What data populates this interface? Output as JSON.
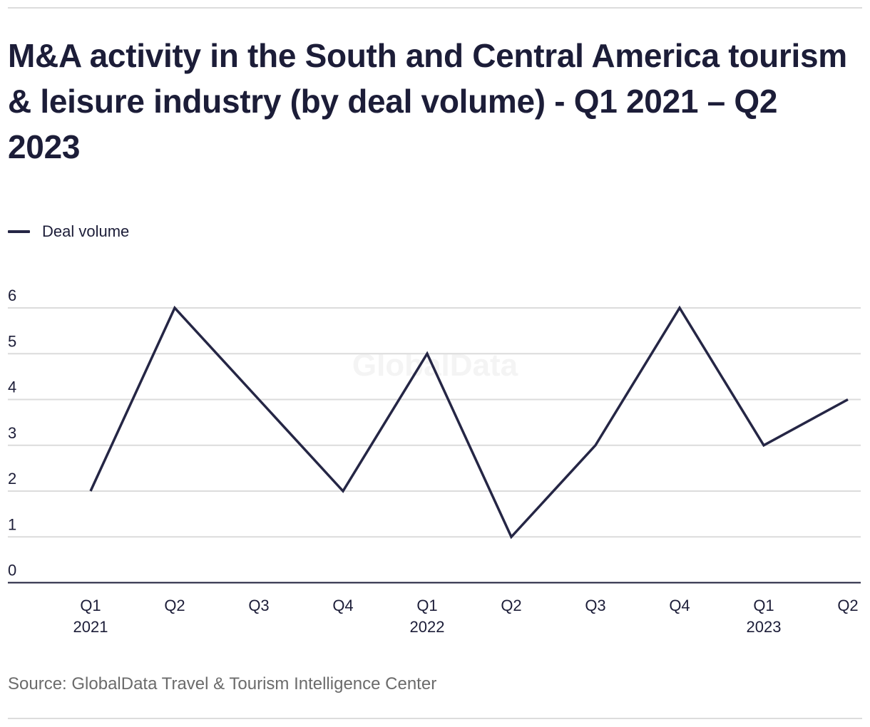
{
  "chart_data": {
    "type": "line",
    "title": "M&A activity in the South and Central America tourism & leisure industry (by deal volume) - Q1 2021 – Q2 2023",
    "xlabel": "",
    "ylabel": "",
    "categories": [
      "Q1 2021",
      "Q2 2021",
      "Q3 2021",
      "Q4 2021",
      "Q1 2022",
      "Q2 2022",
      "Q3 2022",
      "Q4 2022",
      "Q1 2023",
      "Q2 2023"
    ],
    "x_tick_labels": [
      {
        "quarter": "Q1",
        "year": "2021"
      },
      {
        "quarter": "Q2",
        "year": ""
      },
      {
        "quarter": "Q3",
        "year": ""
      },
      {
        "quarter": "Q4",
        "year": ""
      },
      {
        "quarter": "Q1",
        "year": "2022"
      },
      {
        "quarter": "Q2",
        "year": ""
      },
      {
        "quarter": "Q3",
        "year": ""
      },
      {
        "quarter": "Q4",
        "year": ""
      },
      {
        "quarter": "Q1",
        "year": "2023"
      },
      {
        "quarter": "Q2",
        "year": ""
      }
    ],
    "series": [
      {
        "name": "Deal volume",
        "color": "#252645",
        "values": [
          2,
          6,
          4,
          2,
          5,
          1,
          3,
          6,
          3,
          4
        ]
      }
    ],
    "y_ticks": [
      0,
      1,
      2,
      3,
      4,
      5,
      6
    ],
    "ylim": [
      0,
      6
    ],
    "grid": true,
    "legend_position": "top-left",
    "watermark": "GlobalData"
  },
  "header": {
    "title": "M&A activity in the South and Central America tourism & leisure industry (by deal volume) - Q1 2021 – Q2 2023"
  },
  "legend": {
    "items": [
      {
        "label": "Deal volume",
        "color": "#252645"
      }
    ]
  },
  "footer": {
    "source": "Source: GlobalData Travel & Tourism Intelligence Center"
  },
  "colors": {
    "text": "#1c1d38",
    "line": "#252645",
    "grid": "#dcdcdc",
    "axis": "#1c1d38",
    "source_text": "#6b6b6b"
  }
}
